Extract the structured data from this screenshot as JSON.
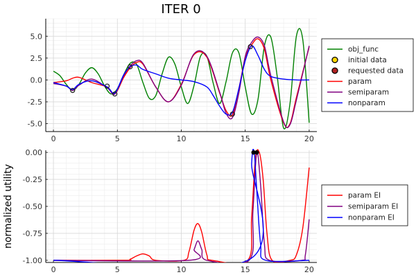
{
  "chart_data": [
    {
      "type": "line",
      "title": "ITER 0",
      "xlabel": "",
      "ylabel": "",
      "xlim": [
        -0.6,
        20.6
      ],
      "ylim": [
        -5.9,
        7.0
      ],
      "xticks": [
        0,
        5,
        10,
        15,
        20
      ],
      "xtick_labels": [
        "0",
        "5",
        "10",
        "15",
        "20"
      ],
      "yticks": [
        -5.0,
        -2.5,
        0.0,
        2.5,
        5.0
      ],
      "ytick_labels": [
        "-5.0",
        "-2.5",
        "0.0",
        "2.5",
        "5.0"
      ],
      "grid": true,
      "legend_position": "outside-right",
      "series": [
        {
          "name": "obj_func",
          "kind": "line",
          "color": "#008000",
          "x": [
            0,
            0.5,
            1,
            1.5,
            2,
            2.5,
            3,
            3.5,
            4,
            4.5,
            5,
            5.5,
            6,
            6.5,
            7,
            7.5,
            8,
            8.5,
            9,
            9.5,
            10,
            10.5,
            11,
            11.5,
            12,
            12.5,
            13,
            13.5,
            14,
            14.5,
            15,
            15.5,
            16,
            16.5,
            17,
            17.5,
            18,
            18.5,
            19,
            19.5,
            20
          ],
          "y": [
            1.0,
            0.5,
            -0.5,
            -1.2,
            -0.5,
            0.8,
            1.4,
            0.7,
            -0.7,
            -1.6,
            -1.0,
            0.6,
            1.9,
            1.8,
            -0.3,
            -2.1,
            -1.8,
            0.7,
            2.6,
            1.8,
            -0.8,
            -2.7,
            -0.6,
            2.7,
            2.7,
            -0.4,
            -2.7,
            -0.2,
            3.1,
            3.1,
            -0.8,
            -3.9,
            -2.2,
            3.9,
            4.9,
            0.4,
            -5.5,
            -2.7,
            5.0,
            4.6,
            -4.9
          ]
        },
        {
          "name": "initial data",
          "kind": "scatter",
          "color": "#FFD700",
          "x": [
            1.5,
            4.2,
            4.8,
            6.0,
            14.0,
            15.4
          ],
          "y": [
            -1.2,
            -0.7,
            -1.6,
            1.5,
            -3.9,
            3.8
          ]
        },
        {
          "name": "requested data",
          "kind": "scatter",
          "color": "#B22222",
          "x": [],
          "y": []
        },
        {
          "name": "param",
          "kind": "line",
          "color": "#FF0000",
          "x": [
            0,
            1,
            1.5,
            2,
            3,
            4.2,
            4.8,
            5.5,
            6,
            6.5,
            7,
            8,
            9,
            10,
            11,
            12,
            13,
            13.5,
            14,
            14.5,
            15,
            15.5,
            16,
            16.5,
            17,
            18,
            18.5,
            19,
            20
          ],
          "y": [
            -0.3,
            -0.1,
            0.2,
            0.3,
            -0.3,
            -0.8,
            -1.6,
            0.3,
            1.4,
            2.0,
            1.8,
            -0.8,
            -2.5,
            -0.5,
            2.9,
            2.6,
            -1.5,
            -3.5,
            -4.0,
            -1.0,
            2.5,
            4.0,
            4.7,
            3.5,
            0.0,
            -4.9,
            -5.0,
            -2.0,
            3.8
          ]
        },
        {
          "name": "semiparam",
          "kind": "line",
          "color": "#800080",
          "x": [
            0,
            1,
            1.5,
            2,
            3,
            4.2,
            4.8,
            5.5,
            6,
            6.5,
            7,
            8,
            9,
            10,
            11,
            12,
            13,
            13.5,
            14,
            14.5,
            15,
            15.5,
            16,
            16.5,
            17,
            18,
            18.5,
            19,
            20
          ],
          "y": [
            -0.4,
            -0.7,
            -1.2,
            -0.6,
            0.1,
            -0.9,
            -1.6,
            0.5,
            1.6,
            2.2,
            1.9,
            -0.8,
            -2.5,
            -0.6,
            3.0,
            2.7,
            -1.4,
            -3.8,
            -4.3,
            -1.5,
            2.7,
            4.3,
            4.9,
            3.9,
            0.5,
            -4.8,
            -5.1,
            -2.3,
            3.9
          ]
        },
        {
          "name": "nonparam",
          "kind": "line",
          "color": "#0000FF",
          "x": [
            0,
            1,
            1.5,
            2,
            3,
            4.2,
            4.8,
            5.5,
            6,
            6.5,
            7,
            8,
            9,
            10,
            11,
            12,
            12.5,
            13,
            13.5,
            14,
            14.5,
            15,
            15.5,
            16,
            16.5,
            17,
            18,
            19,
            20
          ],
          "y": [
            -0.3,
            -0.7,
            -1.1,
            -0.5,
            -0.1,
            -0.8,
            -1.5,
            0.6,
            1.5,
            1.7,
            1.2,
            0.7,
            0.2,
            0.0,
            -0.2,
            -0.8,
            -1.8,
            -3.0,
            -3.9,
            -3.7,
            -1.0,
            2.2,
            3.9,
            2.8,
            1.2,
            0.4,
            0.1,
            0.0,
            0.0
          ]
        }
      ]
    },
    {
      "type": "line",
      "title": "",
      "xlabel": "",
      "ylabel": "normalized utility",
      "xlim": [
        -0.6,
        20.6
      ],
      "ylim": [
        -1.02,
        0.02
      ],
      "xticks": [
        0,
        5,
        10,
        15,
        20
      ],
      "xtick_labels": [
        "0",
        "5",
        "10",
        "15",
        "20"
      ],
      "yticks": [
        -1.0,
        -0.75,
        -0.5,
        -0.25,
        0.0
      ],
      "ytick_labels": [
        "-1.00",
        "-0.75",
        "-0.50",
        "-0.25",
        "0.00"
      ],
      "grid": true,
      "legend_position": "outside-right",
      "series": [
        {
          "name": "param EI",
          "kind": "line",
          "color": "#FF0000",
          "x": [
            0,
            5.5,
            6,
            6.5,
            7,
            7.5,
            8,
            10.2,
            10.6,
            11,
            11.3,
            11.6,
            12,
            12.4,
            15.2,
            15.5,
            15.8,
            16.1,
            16.4,
            16.7,
            17.1,
            18.5,
            19,
            19.5,
            20
          ],
          "y": [
            -1.0,
            -1.0,
            -0.99,
            -0.96,
            -0.94,
            -0.96,
            -1.0,
            -1.0,
            -0.92,
            -0.72,
            -0.66,
            -0.74,
            -0.95,
            -1.0,
            -1.0,
            -0.6,
            -0.05,
            0.0,
            -0.25,
            -0.75,
            -1.0,
            -1.0,
            -0.95,
            -0.7,
            -0.14
          ]
        },
        {
          "name": "semiparam EI",
          "kind": "line",
          "color": "#800080",
          "x": [
            0,
            10.6,
            11,
            11.3,
            11.6,
            12,
            15.3,
            15.6,
            15.9,
            16.2,
            16.5,
            16.9,
            19.4,
            19.7,
            20
          ],
          "y": [
            -1.0,
            -1.0,
            -0.9,
            -0.82,
            -0.9,
            -1.0,
            -1.0,
            -0.55,
            0.0,
            -0.3,
            -0.85,
            -1.0,
            -1.0,
            -0.95,
            -0.62
          ]
        },
        {
          "name": "nonparam EI",
          "kind": "line",
          "color": "#0000FF",
          "x": [
            0,
            15.2,
            15.5,
            15.7,
            15.9,
            16.2,
            16.6,
            20
          ],
          "y": [
            -1.0,
            -1.0,
            -0.1,
            0.0,
            -0.35,
            -0.85,
            -1.0,
            -1.0
          ]
        },
        {
          "name": "",
          "kind": "scatter",
          "color": "#000000",
          "x": [
            15.65,
            15.9
          ],
          "y": [
            0.0,
            0.0
          ]
        }
      ]
    }
  ]
}
